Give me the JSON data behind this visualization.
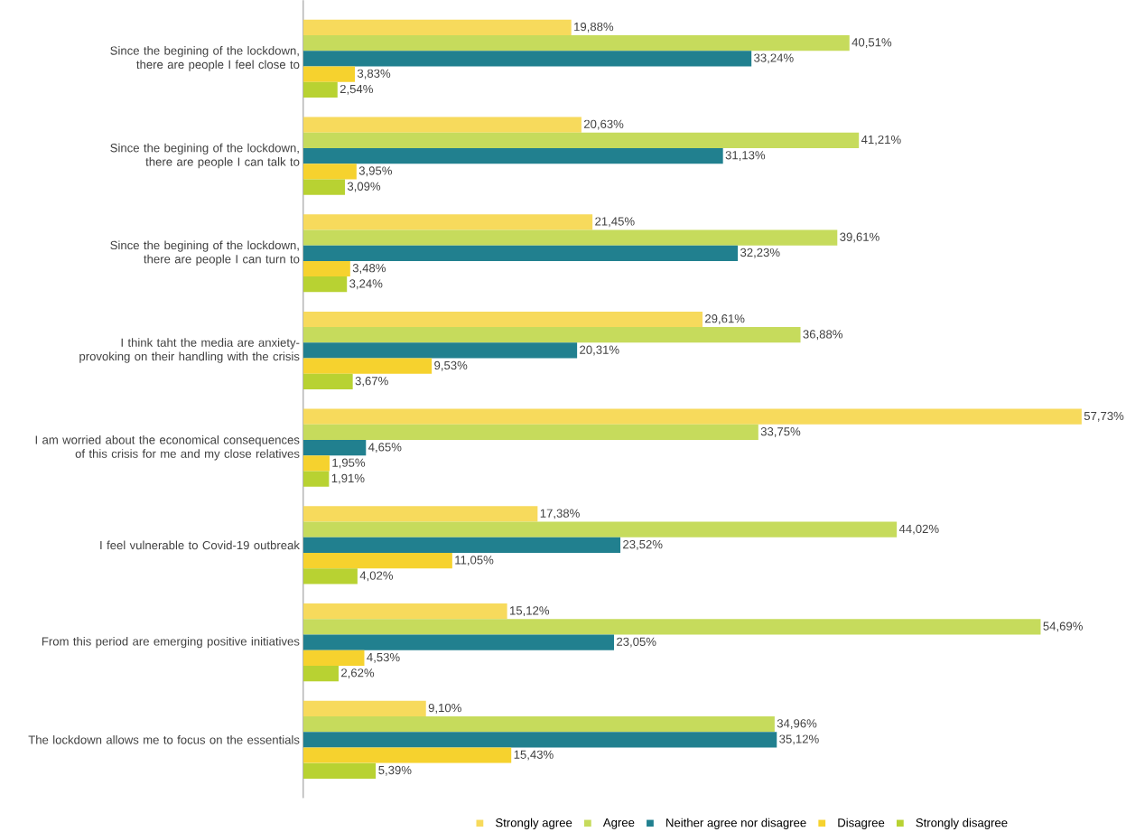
{
  "chart_data": {
    "type": "bar",
    "orientation": "horizontal",
    "legend": "bottom",
    "categories": [
      "Since the begining of the lockdown, there are people I feel close to",
      "Since the begining of the lockdown, there are people I can talk to",
      "Since the begining of the lockdown, there are people I can turn to",
      "I think taht the media are anxiety-provoking on their handling with the crisis",
      "I am worried about the economical consequences of this crisis for me and my close relatives",
      "I feel vulnerable to Covid-19 outbreak",
      "From this period are emerging positive initiatives",
      "The lockdown allows me to focus on the essentials"
    ],
    "series": [
      {
        "name": "Strongly agree",
        "color": "#f7da5c",
        "values": [
          19.88,
          20.63,
          21.45,
          29.61,
          57.73,
          17.38,
          15.12,
          9.1
        ],
        "value_labels": [
          "19,88%",
          "20,63%",
          "21,45%",
          "29,61%",
          "57,73%",
          "17,38%",
          "15,12%",
          "9,10%"
        ]
      },
      {
        "name": "Agree",
        "color": "#c6db5c",
        "values": [
          40.51,
          41.21,
          39.61,
          36.88,
          33.75,
          44.02,
          54.69,
          34.96
        ],
        "value_labels": [
          "40,51%",
          "41,21%",
          "39,61%",
          "36,88%",
          "33,75%",
          "44,02%",
          "54,69%",
          "34,96%"
        ]
      },
      {
        "name": "Neither agree nor disagree",
        "color": "#21808f",
        "values": [
          33.24,
          31.13,
          32.23,
          20.31,
          4.65,
          23.52,
          23.05,
          35.12
        ],
        "value_labels": [
          "33,24%",
          "31,13%",
          "32,23%",
          "20,31%",
          "4,65%",
          "23,52%",
          "23,05%",
          "35,12%"
        ]
      },
      {
        "name": "Disagree",
        "color": "#f6d22e",
        "values": [
          3.83,
          3.95,
          3.48,
          9.53,
          1.95,
          11.05,
          4.53,
          15.43
        ],
        "value_labels": [
          "3,83%",
          "3,95%",
          "3,48%",
          "9,53%",
          "1,95%",
          "11,05%",
          "4,53%",
          "15,43%"
        ]
      },
      {
        "name": "Strongly disagree",
        "color": "#b8d232",
        "values": [
          2.54,
          3.09,
          3.24,
          3.67,
          1.91,
          4.02,
          2.62,
          5.39
        ],
        "value_labels": [
          "2,54%",
          "3,09%",
          "3,24%",
          "3,67%",
          "1,91%",
          "4,02%",
          "2,62%",
          "5,39%"
        ]
      }
    ]
  }
}
